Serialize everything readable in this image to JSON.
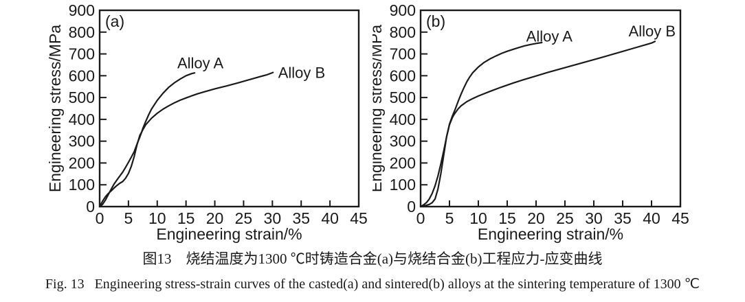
{
  "colors": {
    "line": "#1a1a1a",
    "background": "#ffffff"
  },
  "figure_caption": {
    "line_zh": "图13　烧结温度为1300 ℃时铸造合金(a)与烧结合金(b)工程应力-应变曲线",
    "line_en": "Fig. 13   Engineering stress-strain curves of the casted(a) and sintered(b) alloys at the sintering temperature of 1300 ℃"
  },
  "chart_data": [
    {
      "type": "line",
      "panel_label": "(a)",
      "xlabel": "Engineering strain/%",
      "ylabel": "Engineering stress/MPa",
      "xlim": [
        0,
        45
      ],
      "ylim": [
        0,
        900
      ],
      "xticks": [
        0,
        5,
        10,
        15,
        20,
        25,
        30,
        35,
        40,
        45
      ],
      "yticks": [
        0,
        100,
        200,
        300,
        400,
        500,
        600,
        700,
        800,
        900
      ],
      "grid": false,
      "legend_position": "inline-labels",
      "series": [
        {
          "name": "Alloy A",
          "label": {
            "x": 17.5,
            "y": 660,
            "align": "middle"
          },
          "points": [
            [
              0,
              0
            ],
            [
              0.5,
              25
            ],
            [
              1,
              45
            ],
            [
              1.5,
              60
            ],
            [
              2,
              72
            ],
            [
              2.5,
              85
            ],
            [
              3,
              97
            ],
            [
              3.5,
              107
            ],
            [
              4,
              115
            ],
            [
              4.5,
              130
            ],
            [
              5,
              152
            ],
            [
              5.5,
              185
            ],
            [
              6,
              230
            ],
            [
              6.5,
              285
            ],
            [
              7,
              328
            ],
            [
              7.3,
              342
            ],
            [
              7.5,
              358
            ],
            [
              8,
              390
            ],
            [
              8.5,
              420
            ],
            [
              9,
              447
            ],
            [
              10,
              487
            ],
            [
              11,
              520
            ],
            [
              12,
              547
            ],
            [
              13,
              568
            ],
            [
              14,
              585
            ],
            [
              15,
              600
            ],
            [
              16,
              610
            ],
            [
              16.5,
              613
            ]
          ]
        },
        {
          "name": "Alloy B",
          "label": {
            "x": 31,
            "y": 615,
            "align": "start"
          },
          "points": [
            [
              0,
              0
            ],
            [
              0.5,
              10
            ],
            [
              1,
              30
            ],
            [
              1.5,
              55
            ],
            [
              2,
              80
            ],
            [
              2.5,
              103
            ],
            [
              3,
              122
            ],
            [
              3.5,
              140
            ],
            [
              4,
              158
            ],
            [
              4.5,
              180
            ],
            [
              5,
              203
            ],
            [
              5.5,
              227
            ],
            [
              6,
              252
            ],
            [
              6.5,
              288
            ],
            [
              7,
              320
            ],
            [
              7.3,
              342
            ],
            [
              7.5,
              352
            ],
            [
              8,
              375
            ],
            [
              9,
              405
            ],
            [
              10,
              428
            ],
            [
              11,
              447
            ],
            [
              12,
              462
            ],
            [
              13,
              476
            ],
            [
              14,
              488
            ],
            [
              15,
              498
            ],
            [
              16,
              508
            ],
            [
              17,
              517
            ],
            [
              18,
              525
            ],
            [
              20,
              540
            ],
            [
              22,
              553
            ],
            [
              24,
              567
            ],
            [
              26,
              582
            ],
            [
              28,
              597
            ],
            [
              29,
              604
            ],
            [
              30.1,
              615
            ]
          ]
        }
      ]
    },
    {
      "type": "line",
      "panel_label": "(b)",
      "xlabel": "Engineering strain/%",
      "ylabel": "Engineering stress/MPa",
      "xlim": [
        0,
        45
      ],
      "ylim": [
        0,
        900
      ],
      "xticks": [
        0,
        5,
        10,
        15,
        20,
        25,
        30,
        35,
        40,
        45
      ],
      "yticks": [
        0,
        100,
        200,
        300,
        400,
        500,
        600,
        700,
        800,
        900
      ],
      "grid": false,
      "legend_position": "inline-labels",
      "series": [
        {
          "name": "Alloy A",
          "label": {
            "x": 22.3,
            "y": 782,
            "align": "middle"
          },
          "points": [
            [
              0,
              0
            ],
            [
              0.5,
              3
            ],
            [
              1,
              6
            ],
            [
              1.5,
              10
            ],
            [
              2,
              18
            ],
            [
              2.5,
              35
            ],
            [
              3,
              80
            ],
            [
              3.5,
              150
            ],
            [
              4,
              235
            ],
            [
              4.5,
              320
            ],
            [
              5,
              378
            ],
            [
              5.5,
              415
            ],
            [
              5.7,
              428
            ],
            [
              6,
              447
            ],
            [
              6.5,
              482
            ],
            [
              7,
              515
            ],
            [
              7.5,
              545
            ],
            [
              8,
              572
            ],
            [
              8.5,
              594
            ],
            [
              9,
              613
            ],
            [
              10,
              640
            ],
            [
              11,
              661
            ],
            [
              12,
              677
            ],
            [
              13,
              690
            ],
            [
              14,
              702
            ],
            [
              15,
              712
            ],
            [
              16,
              721
            ],
            [
              17,
              729
            ],
            [
              18,
              737
            ],
            [
              19,
              743
            ],
            [
              20,
              748
            ],
            [
              21,
              752
            ]
          ]
        },
        {
          "name": "Alloy B",
          "label": {
            "x": 40.1,
            "y": 806,
            "align": "middle"
          },
          "points": [
            [
              0,
              0
            ],
            [
              0.5,
              8
            ],
            [
              1,
              18
            ],
            [
              1.5,
              35
            ],
            [
              2,
              60
            ],
            [
              2.5,
              95
            ],
            [
              3,
              140
            ],
            [
              3.5,
              195
            ],
            [
              4,
              255
            ],
            [
              4.5,
              320
            ],
            [
              5,
              375
            ],
            [
              5.5,
              408
            ],
            [
              5.7,
              418
            ],
            [
              6,
              430
            ],
            [
              6.5,
              448
            ],
            [
              7,
              462
            ],
            [
              8,
              481
            ],
            [
              9,
              495
            ],
            [
              10,
              507
            ],
            [
              12,
              528
            ],
            [
              14,
              548
            ],
            [
              16,
              566
            ],
            [
              18,
              583
            ],
            [
              20,
              599
            ],
            [
              22,
              615
            ],
            [
              25,
              637
            ],
            [
              28,
              659
            ],
            [
              31,
              681
            ],
            [
              34,
              704
            ],
            [
              37,
              727
            ],
            [
              40,
              750
            ],
            [
              40.6,
              757
            ]
          ]
        }
      ]
    }
  ]
}
